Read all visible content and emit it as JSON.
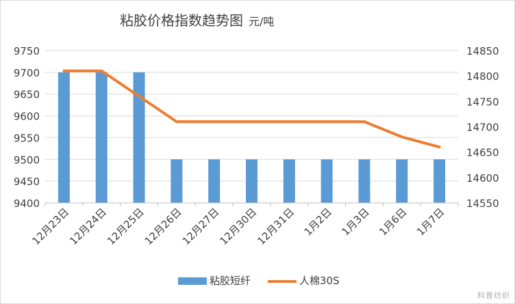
{
  "chart_data": {
    "type": "bar",
    "title_main": "粘胶价格指数趋势图",
    "title_unit": "元/吨",
    "categories": [
      "12月23日",
      "12月24日",
      "12月25日",
      "12月26日",
      "12月27日",
      "12月30日",
      "12月31日",
      "1月2日",
      "1月3日",
      "1月6日",
      "1月7日"
    ],
    "series": [
      {
        "name": "粘胶短纤",
        "type": "bar",
        "axis": "left",
        "color": "#5b9bd5",
        "values": [
          9700,
          9700,
          9700,
          9500,
          9500,
          9500,
          9500,
          9500,
          9500,
          9500,
          9500
        ]
      },
      {
        "name": "人棉30S",
        "type": "line",
        "axis": "right",
        "color": "#ed7d31",
        "values": [
          14810,
          14810,
          14760,
          14710,
          14710,
          14710,
          14710,
          14710,
          14710,
          14680,
          14660
        ]
      }
    ],
    "y_left": {
      "min": 9400,
      "max": 9750,
      "step": 50,
      "ticks": [
        "9400",
        "9450",
        "9500",
        "9550",
        "9600",
        "9650",
        "9700",
        "9750"
      ]
    },
    "y_right": {
      "min": 14550,
      "max": 14850,
      "step": 50,
      "ticks": [
        "14550",
        "14600",
        "14650",
        "14700",
        "14750",
        "14800",
        "14850"
      ]
    },
    "grid": true,
    "legend_position": "bottom"
  },
  "watermark": "科普纺织"
}
